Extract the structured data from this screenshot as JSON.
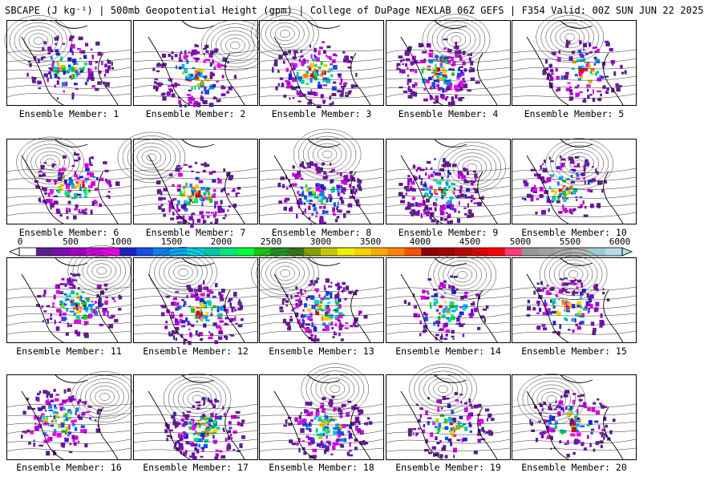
{
  "header": {
    "title": "SBCAPE (J kg⁻¹) | 500mb Geopotential Height (gpm) | College of DuPage NEXLAB 06Z GEFS | F354 Valid: 00Z SUN JUN 22 2025"
  },
  "colorbar": {
    "ticks": [
      "0",
      "500",
      "1000",
      "1500",
      "2000",
      "2500",
      "3000",
      "3500",
      "4000",
      "4500",
      "5000",
      "5500",
      "6000"
    ],
    "min": 0,
    "max": 6000,
    "colors": [
      "#ffffff",
      "#5a1e8c",
      "#7a0cb4",
      "#a000c8",
      "#d000e0",
      "#f000f0",
      "#2020c8",
      "#1450e6",
      "#0a82f0",
      "#00aaff",
      "#00d2e6",
      "#00c8aa",
      "#00e678",
      "#00ff3c",
      "#14c814",
      "#1e961e",
      "#3c7814",
      "#88a000",
      "#c8c800",
      "#f0f000",
      "#ffd200",
      "#ffaa00",
      "#ff8200",
      "#ff5000",
      "#8c0000",
      "#aa0000",
      "#c80000",
      "#e60000",
      "#ff0000",
      "#ff3c78",
      "#969696",
      "#a0a0a0",
      "#aaaaaa",
      "#b4b4b4",
      "#a0c8d2",
      "#b4dce6"
    ]
  },
  "members": [
    {
      "label": "Ensemble Member: 1"
    },
    {
      "label": "Ensemble Member: 2"
    },
    {
      "label": "Ensemble Member: 3"
    },
    {
      "label": "Ensemble Member: 4"
    },
    {
      "label": "Ensemble Member: 5"
    },
    {
      "label": "Ensemble Member: 6"
    },
    {
      "label": "Ensemble Member: 7"
    },
    {
      "label": "Ensemble Member: 8"
    },
    {
      "label": "Ensemble Member: 9"
    },
    {
      "label": "Ensemble Member: 10"
    },
    {
      "label": "Ensemble Member: 11"
    },
    {
      "label": "Ensemble Member: 12"
    },
    {
      "label": "Ensemble Member: 13"
    },
    {
      "label": "Ensemble Member: 14"
    },
    {
      "label": "Ensemble Member: 15"
    },
    {
      "label": "Ensemble Member: 16"
    },
    {
      "label": "Ensemble Member: 17"
    },
    {
      "label": "Ensemble Member: 18"
    },
    {
      "label": "Ensemble Member: 19"
    },
    {
      "label": "Ensemble Member: 20"
    }
  ]
}
